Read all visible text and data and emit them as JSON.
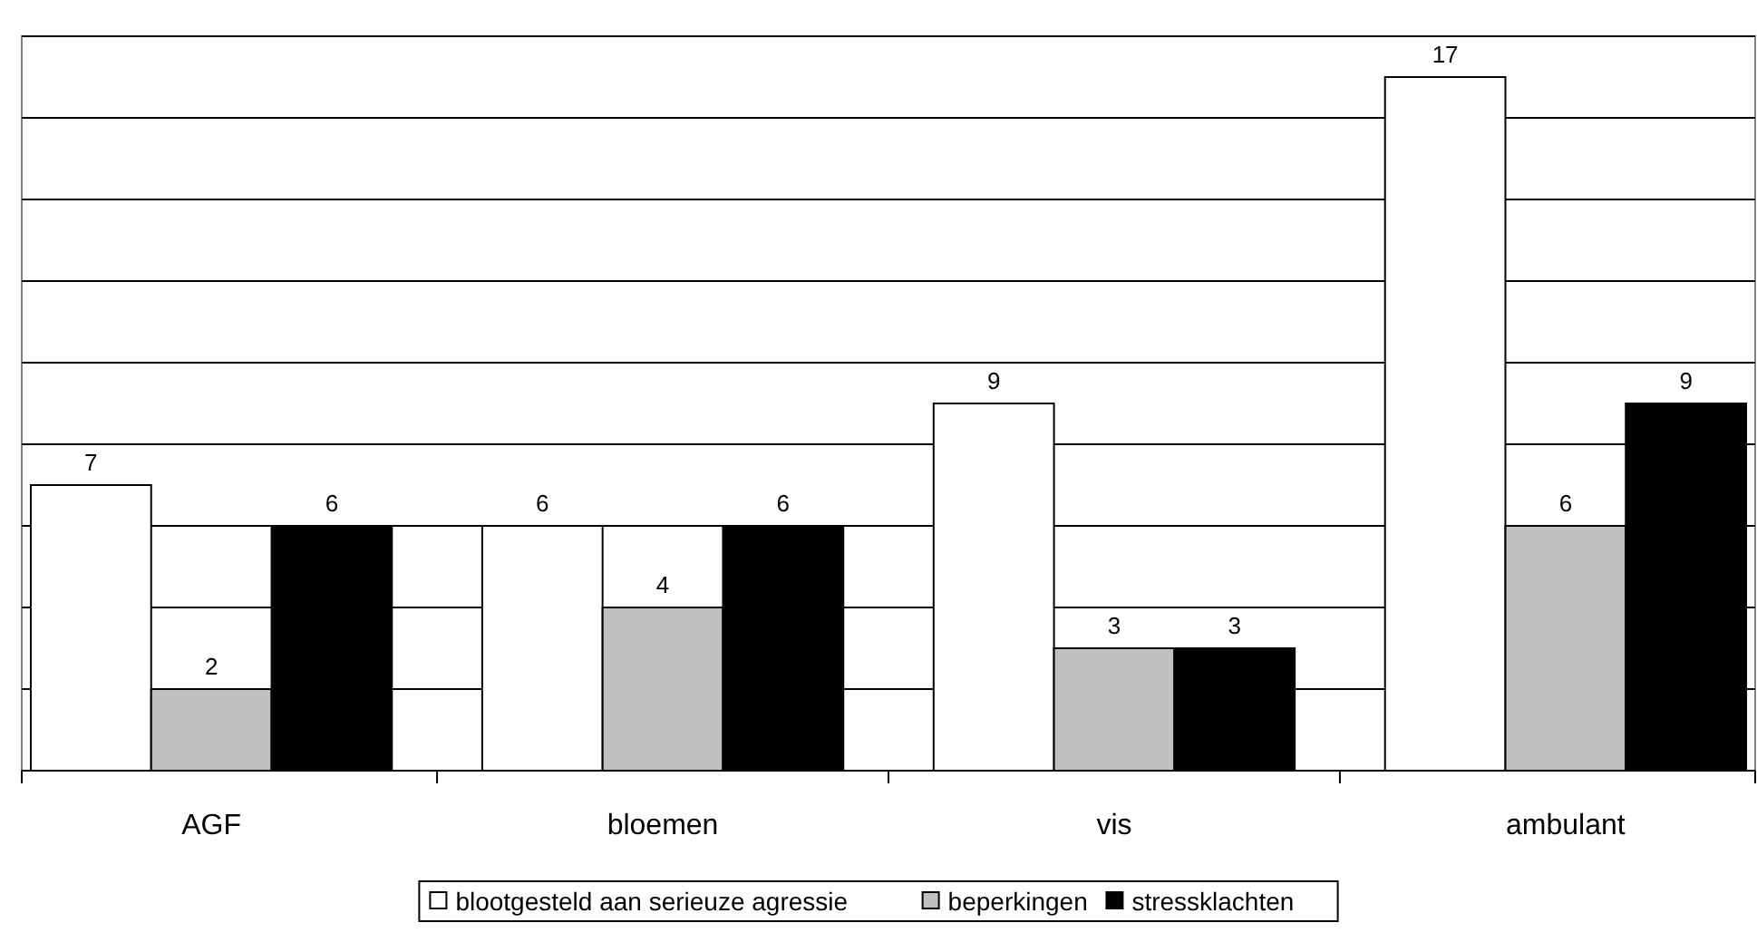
{
  "chart_data": {
    "type": "bar",
    "categories": [
      "AGF",
      "bloemen",
      "vis",
      "ambulant"
    ],
    "series": [
      {
        "name": "blootgesteld aan serieuze agressie",
        "color": "#ffffff",
        "values": [
          7,
          6,
          9,
          17
        ]
      },
      {
        "name": "beperkingen",
        "color": "#c0c0c0",
        "values": [
          2,
          4,
          3,
          6
        ]
      },
      {
        "name": "stressklachten",
        "color": "#000000",
        "values": [
          6,
          6,
          3,
          9
        ]
      }
    ],
    "ylim": [
      0,
      18
    ],
    "yticks": [
      {
        "value": 0,
        "label": null
      },
      {
        "value": 2,
        "label": null
      },
      {
        "value": 4,
        "label": null
      },
      {
        "value": 6,
        "label": null
      },
      {
        "value": 8,
        "label": null
      },
      {
        "value": 10,
        "label": null
      },
      {
        "value": 12,
        "label": null
      },
      {
        "value": 14,
        "label": null
      },
      {
        "value": 16,
        "label": null
      },
      {
        "value": 18,
        "label": null
      }
    ],
    "grid": "y",
    "data_labels": true,
    "legend": "bottom",
    "tick_labels": "x"
  }
}
